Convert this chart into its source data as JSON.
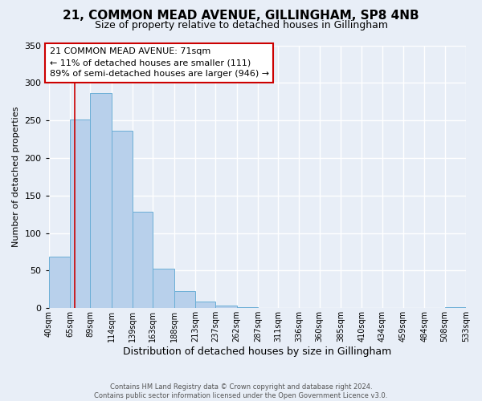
{
  "title": "21, COMMON MEAD AVENUE, GILLINGHAM, SP8 4NB",
  "subtitle": "Size of property relative to detached houses in Gillingham",
  "xlabel": "Distribution of detached houses by size in Gillingham",
  "ylabel": "Number of detached properties",
  "bin_edges": [
    40,
    65,
    89,
    114,
    139,
    163,
    188,
    213,
    237,
    262,
    287,
    311,
    336,
    360,
    385,
    410,
    434,
    459,
    484,
    508,
    533
  ],
  "bar_heights": [
    69,
    251,
    286,
    236,
    128,
    53,
    23,
    9,
    4,
    1,
    0,
    0,
    0,
    0,
    0,
    0,
    0,
    0,
    0,
    1
  ],
  "bar_color": "#b8d0eb",
  "bar_edge_color": "#6aaed6",
  "property_line_x": 71,
  "property_line_color": "#cc0000",
  "annotation_text": "21 COMMON MEAD AVENUE: 71sqm\n← 11% of detached houses are smaller (111)\n89% of semi-detached houses are larger (946) →",
  "annotation_box_color": "#ffffff",
  "annotation_box_edge_color": "#cc0000",
  "ylim": [
    0,
    350
  ],
  "yticks": [
    0,
    50,
    100,
    150,
    200,
    250,
    300,
    350
  ],
  "footer_line1": "Contains HM Land Registry data © Crown copyright and database right 2024.",
  "footer_line2": "Contains public sector information licensed under the Open Government Licence v3.0.",
  "bg_color": "#e8eef7",
  "plot_bg_color": "#e8eef7",
  "grid_color": "#ffffff",
  "title_fontsize": 11,
  "subtitle_fontsize": 9,
  "xlabel_fontsize": 9,
  "ylabel_fontsize": 8,
  "annotation_fontsize": 8,
  "tick_labels": [
    "40sqm",
    "65sqm",
    "89sqm",
    "114sqm",
    "139sqm",
    "163sqm",
    "188sqm",
    "213sqm",
    "237sqm",
    "262sqm",
    "287sqm",
    "311sqm",
    "336sqm",
    "360sqm",
    "385sqm",
    "410sqm",
    "434sqm",
    "459sqm",
    "484sqm",
    "508sqm",
    "533sqm"
  ],
  "figwidth": 6.0,
  "figheight": 5.0,
  "dpi": 100
}
